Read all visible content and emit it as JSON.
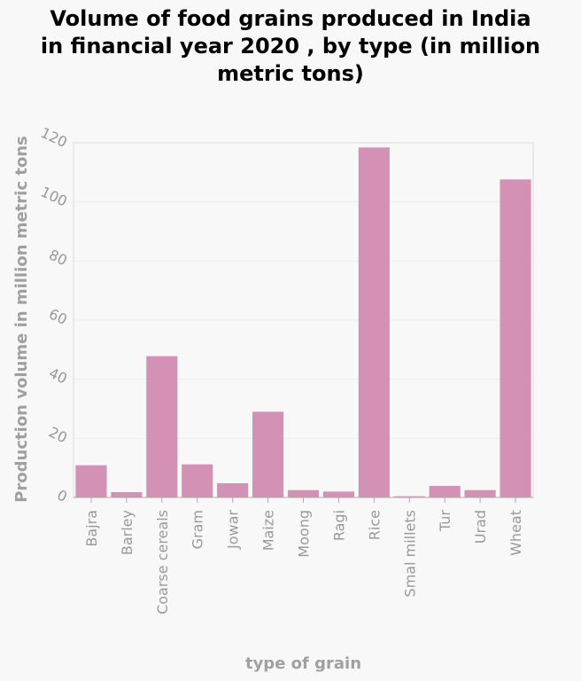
{
  "title_lines": [
    "Volume of food grains produced in India",
    "in financial year 2020 , by type (in million",
    "metric tons)"
  ],
  "chart_data": {
    "type": "bar",
    "title": "Volume of food grains produced in India in financial year 2020 , by type (in million metric tons)",
    "xlabel": "type of grain",
    "ylabel": "Production volume in million metric tons",
    "categories": [
      "Bajra",
      "Barley",
      "Coarse cereals",
      "Gram",
      "Jowar",
      "Maize",
      "Moong",
      "Ragi",
      "Rice",
      "Smal millets",
      "Tur",
      "Urad",
      "Wheat"
    ],
    "values": [
      10.9,
      1.8,
      47.8,
      11.2,
      4.8,
      29.0,
      2.5,
      2.0,
      118.4,
      0.4,
      3.9,
      2.5,
      107.6
    ],
    "ylim": [
      0,
      120
    ],
    "yticks": [
      0,
      20,
      40,
      60,
      80,
      100,
      120
    ],
    "grid": true,
    "bar_color": "#d291b5"
  }
}
